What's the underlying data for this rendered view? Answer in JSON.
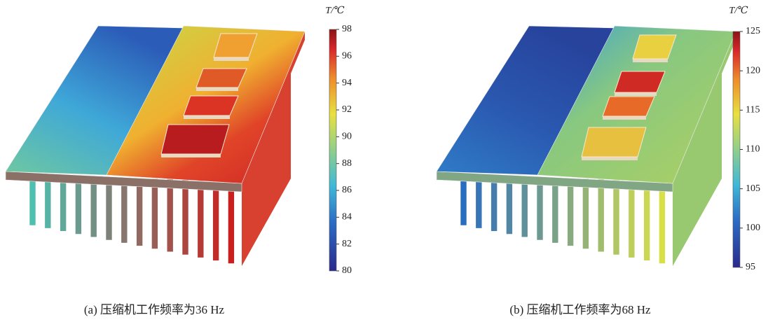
{
  "panels": [
    {
      "caption": "(a) 压缩机工作频率为36 Hz",
      "colorbar": {
        "title": "T/℃",
        "ticks": [
          98,
          96,
          94,
          92,
          90,
          88,
          86,
          84,
          82,
          80
        ]
      }
    },
    {
      "caption": "(b) 压缩机工作频率为68 Hz",
      "colorbar": {
        "title": "T/℃",
        "ticks": [
          125,
          120,
          115,
          110,
          105,
          100,
          95
        ]
      }
    }
  ]
}
